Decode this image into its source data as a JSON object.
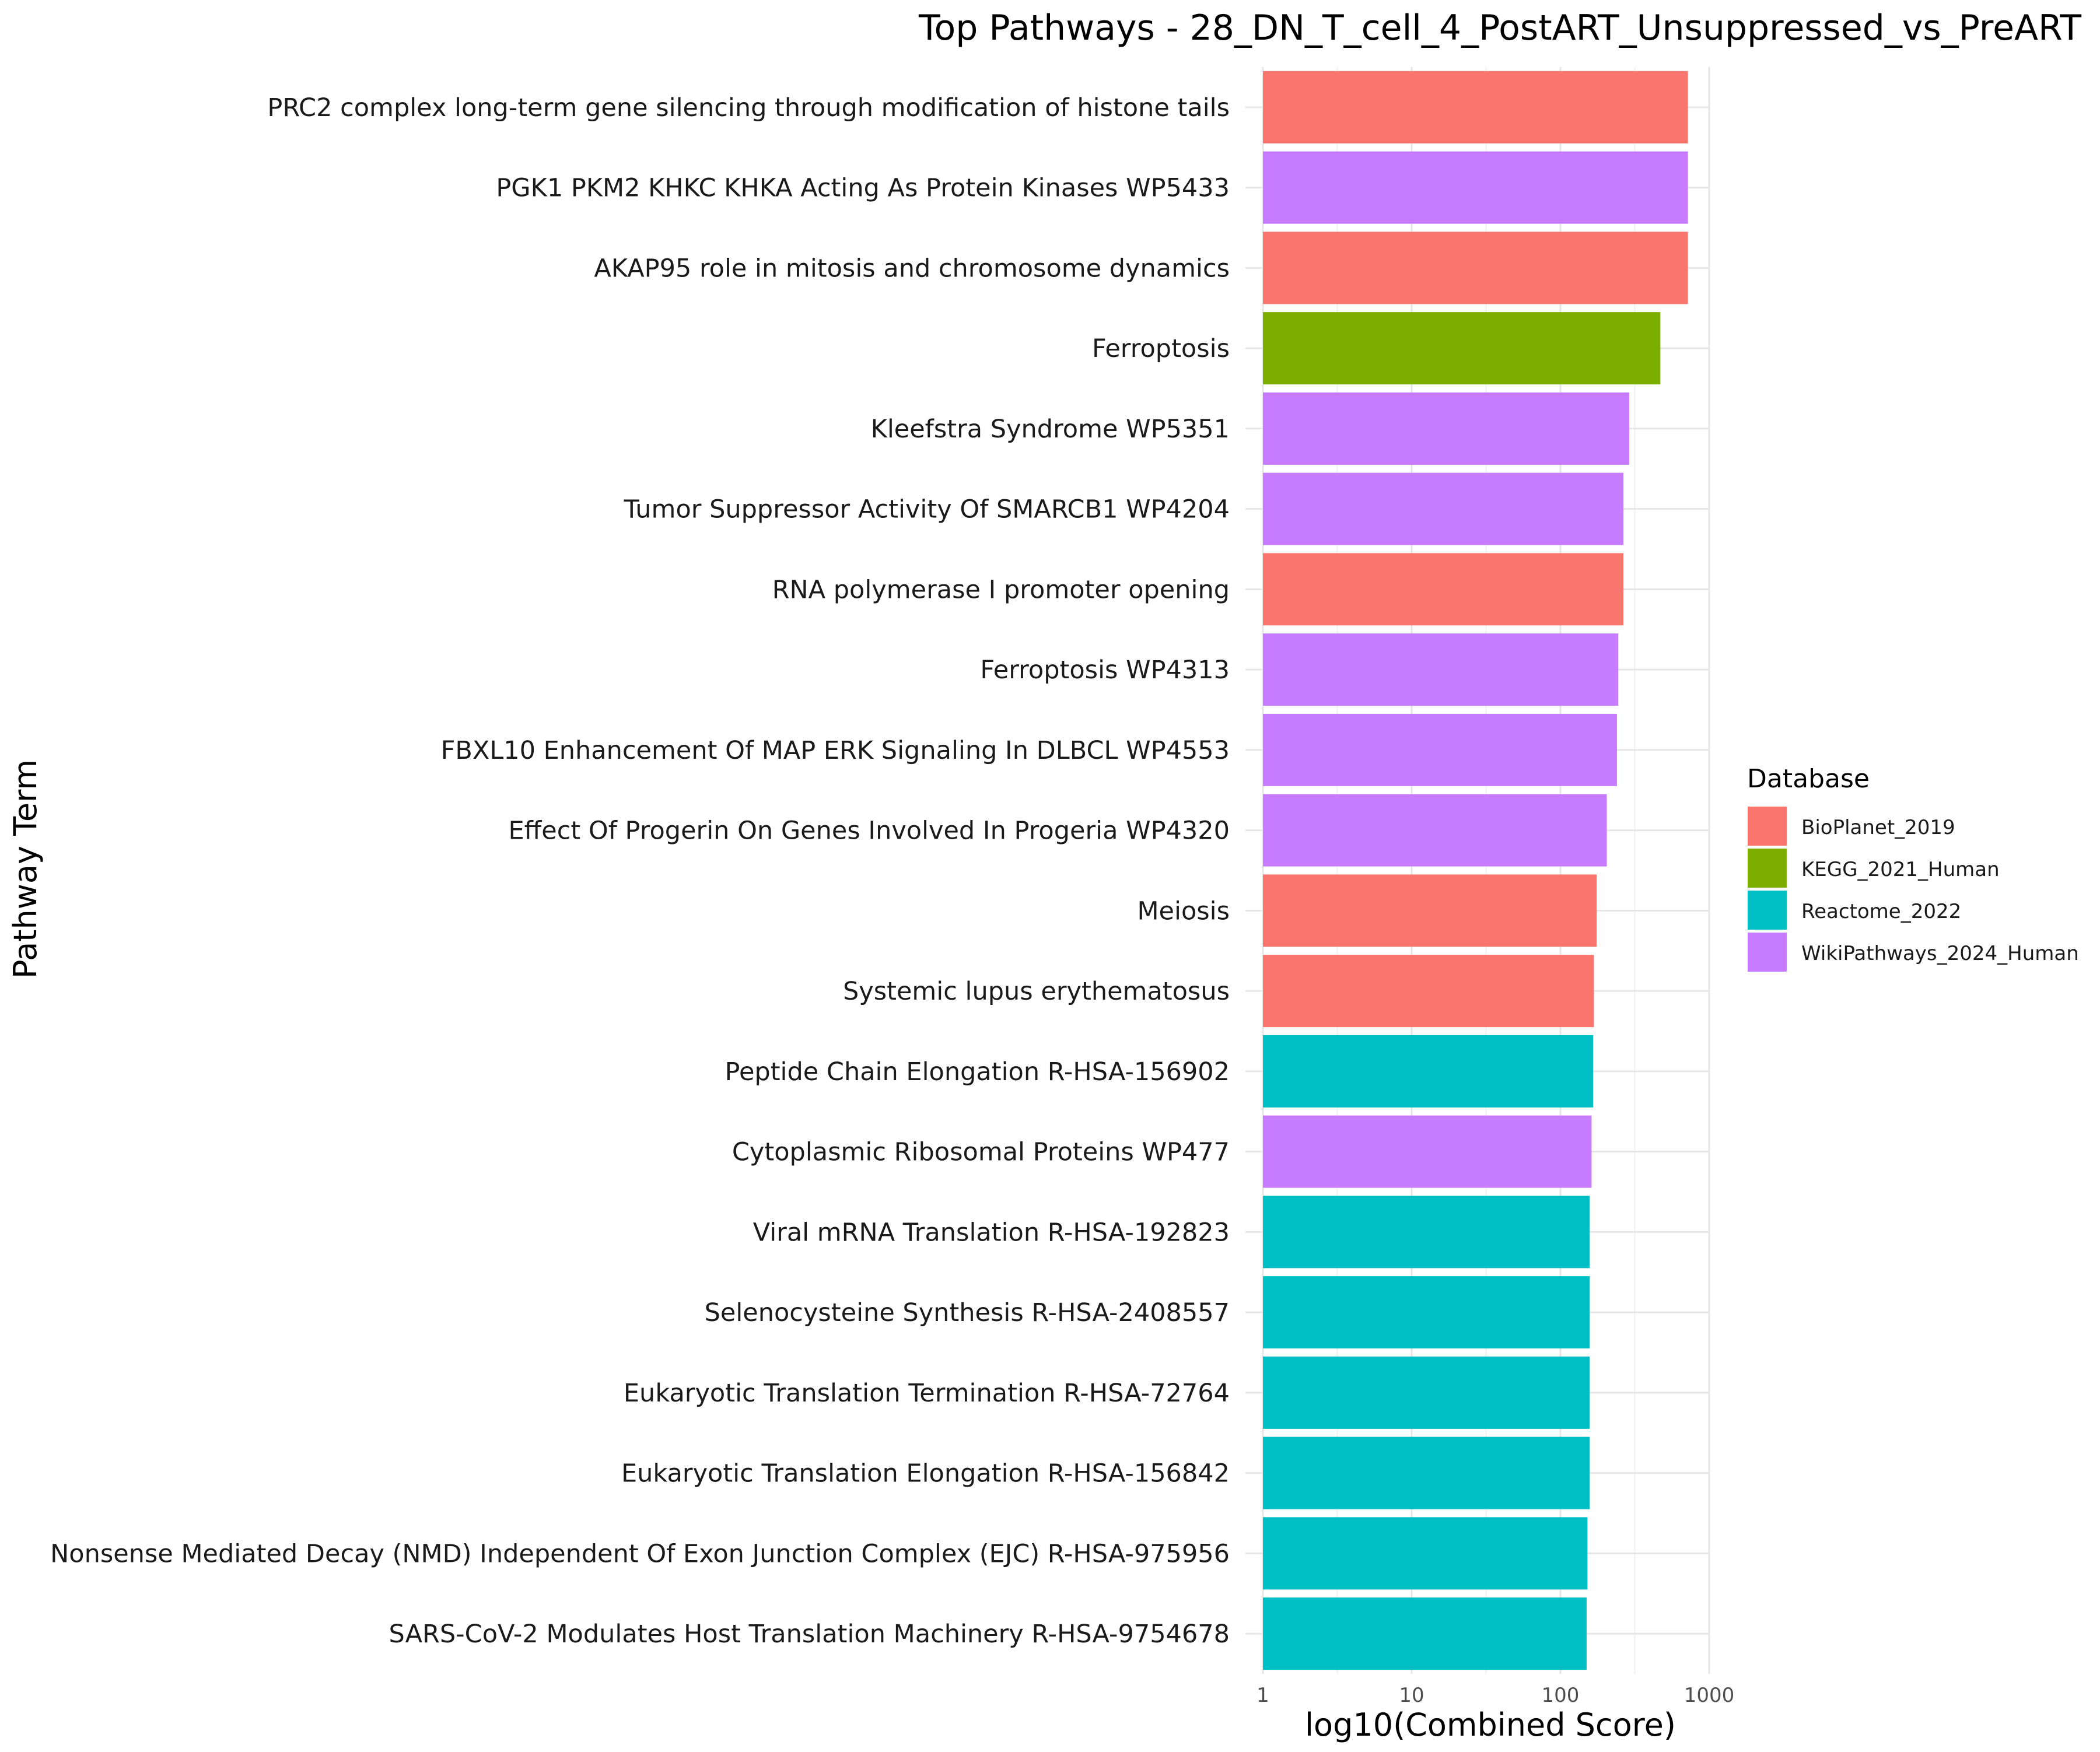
{
  "chart_data": {
    "type": "bar",
    "orientation": "horizontal",
    "title": "Top Pathways - 28_DN_T_cell_4_PostART_Unsuppressed_vs_PreART",
    "xlabel": "log10(Combined Score)",
    "ylabel": "Pathway Term",
    "x_scale": "log10",
    "xlim": [
      1,
      1000
    ],
    "x_ticks": [
      1,
      10,
      100,
      1000
    ],
    "x_tick_labels": [
      "1",
      "10",
      "100",
      "1000"
    ],
    "grid": true,
    "legend": {
      "title": "Database",
      "position": "right",
      "entries": [
        {
          "name": "BioPlanet_2019",
          "color": "#F8766D"
        },
        {
          "name": "KEGG_2021_Human",
          "color": "#7CAE00"
        },
        {
          "name": "Reactome_2022",
          "color": "#00BFC4"
        },
        {
          "name": "WikiPathways_2024_Human",
          "color": "#C77CFF"
        }
      ]
    },
    "bars": [
      {
        "term": "PRC2 complex long-term gene silencing through modification of histone tails",
        "database": "BioPlanet_2019",
        "value": 720
      },
      {
        "term": "PGK1 PKM2 KHKC KHKA Acting As Protein Kinases WP5433",
        "database": "WikiPathways_2024_Human",
        "value": 720
      },
      {
        "term": "AKAP95 role in mitosis and chromosome dynamics",
        "database": "BioPlanet_2019",
        "value": 720
      },
      {
        "term": "Ferroptosis",
        "database": "KEGG_2021_Human",
        "value": 470
      },
      {
        "term": "Kleefstra Syndrome WP5351",
        "database": "WikiPathways_2024_Human",
        "value": 290
      },
      {
        "term": "Tumor Suppressor Activity Of SMARCB1 WP4204",
        "database": "WikiPathways_2024_Human",
        "value": 265
      },
      {
        "term": "RNA polymerase I promoter opening",
        "database": "BioPlanet_2019",
        "value": 265
      },
      {
        "term": "Ferroptosis WP4313",
        "database": "WikiPathways_2024_Human",
        "value": 245
      },
      {
        "term": "FBXL10 Enhancement Of MAP ERK Signaling In DLBCL WP4553",
        "database": "WikiPathways_2024_Human",
        "value": 240
      },
      {
        "term": "Effect Of Progerin On Genes Involved In Progeria WP4320",
        "database": "WikiPathways_2024_Human",
        "value": 205
      },
      {
        "term": "Meiosis",
        "database": "BioPlanet_2019",
        "value": 175
      },
      {
        "term": "Systemic lupus erythematosus",
        "database": "BioPlanet_2019",
        "value": 168
      },
      {
        "term": "Peptide Chain Elongation R-HSA-156902",
        "database": "Reactome_2022",
        "value": 166
      },
      {
        "term": "Cytoplasmic Ribosomal Proteins WP477",
        "database": "WikiPathways_2024_Human",
        "value": 162
      },
      {
        "term": "Viral mRNA Translation R-HSA-192823",
        "database": "Reactome_2022",
        "value": 157
      },
      {
        "term": "Selenocysteine Synthesis R-HSA-2408557",
        "database": "Reactome_2022",
        "value": 157
      },
      {
        "term": "Eukaryotic Translation Termination R-HSA-72764",
        "database": "Reactome_2022",
        "value": 157
      },
      {
        "term": "Eukaryotic Translation Elongation R-HSA-156842",
        "database": "Reactome_2022",
        "value": 157
      },
      {
        "term": "Nonsense Mediated Decay (NMD) Independent Of Exon Junction Complex (EJC) R-HSA-975956",
        "database": "Reactome_2022",
        "value": 152
      },
      {
        "term": "SARS-CoV-2 Modulates Host Translation Machinery R-HSA-9754678",
        "database": "Reactome_2022",
        "value": 150
      }
    ]
  }
}
